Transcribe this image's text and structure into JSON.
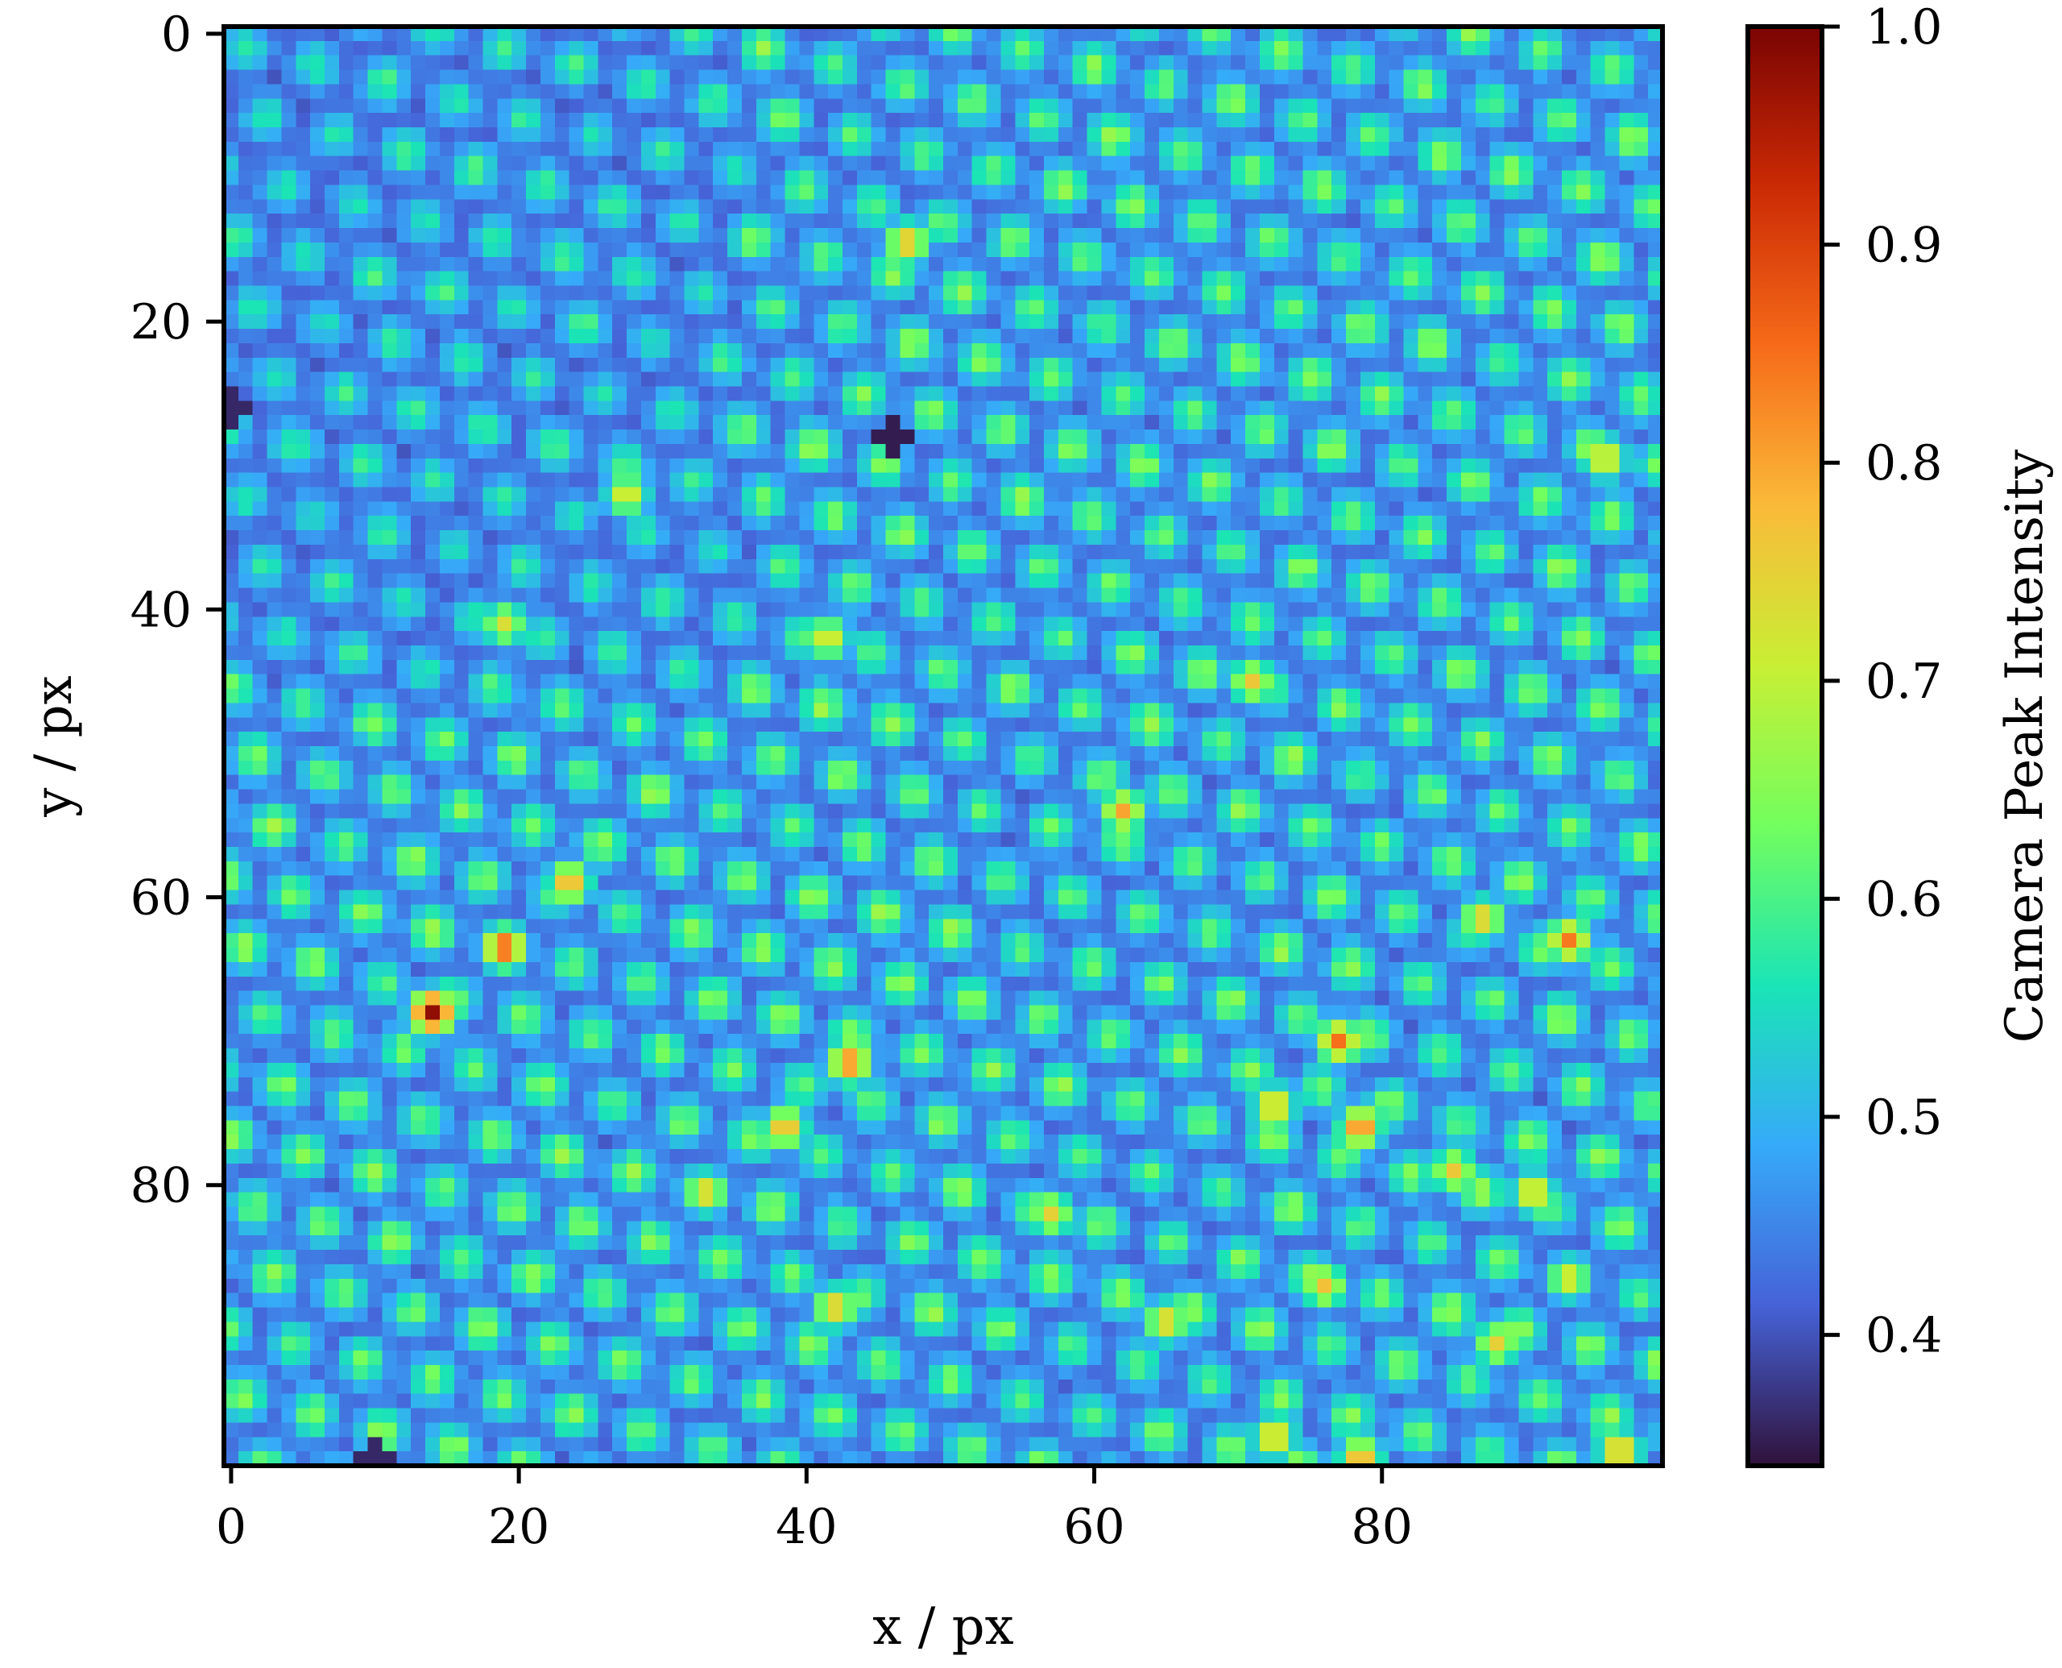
{
  "chart_data": {
    "type": "heatmap",
    "title": "",
    "xlabel": "x / px",
    "ylabel": "y / px",
    "xlim": [
      -0.5,
      99.5
    ],
    "ylim": [
      99.5,
      -0.5
    ],
    "x_ticks": [
      0,
      20,
      40,
      60,
      80
    ],
    "y_ticks": [
      0,
      20,
      40,
      60,
      80
    ],
    "grid": false,
    "colormap": "turbo",
    "colorbar": {
      "label": "Camera Peak Intensity",
      "vmin": 0.34,
      "vmax": 1.0,
      "ticks": [
        0.4,
        0.5,
        0.6,
        0.7,
        0.8,
        0.9,
        1.0
      ],
      "tick_labels": [
        "0.4",
        "0.5",
        "0.6",
        "0.7",
        "0.8",
        "0.9",
        "1.0"
      ],
      "colors": [
        "#30123b",
        "#4662d7",
        "#36aaf9",
        "#1ae4b6",
        "#72fe5e",
        "#c8ef34",
        "#faba39",
        "#f66b19",
        "#cb2a04",
        "#7a0403"
      ]
    },
    "grid_shape": [
      100,
      100
    ],
    "lattice": {
      "spacing": 5.0,
      "angle_deg": 14,
      "spot_sigma": 1.25,
      "background": 0.4,
      "peak": 0.64,
      "left_region_peak": 0.58
    },
    "bright_spots": [
      {
        "x": 14,
        "y": 68,
        "value": 0.98
      },
      {
        "x": 19,
        "y": 63.5,
        "value": 0.88
      },
      {
        "x": 23.5,
        "y": 59,
        "value": 0.8
      },
      {
        "x": 47,
        "y": 14.5,
        "value": 0.78
      },
      {
        "x": 43,
        "y": 71.5,
        "value": 0.84
      },
      {
        "x": 38.5,
        "y": 76,
        "value": 0.79
      },
      {
        "x": 33,
        "y": 80.5,
        "value": 0.76
      },
      {
        "x": 77,
        "y": 70,
        "value": 0.85
      },
      {
        "x": 78.5,
        "y": 76,
        "value": 0.84
      },
      {
        "x": 72.5,
        "y": 74.5,
        "value": 0.78
      },
      {
        "x": 93,
        "y": 63,
        "value": 0.84
      },
      {
        "x": 62,
        "y": 54,
        "value": 0.8
      },
      {
        "x": 71,
        "y": 45,
        "value": 0.76
      },
      {
        "x": 87,
        "y": 61.5,
        "value": 0.77
      },
      {
        "x": 42,
        "y": 88.5,
        "value": 0.77
      },
      {
        "x": 65,
        "y": 89.5,
        "value": 0.76
      },
      {
        "x": 76,
        "y": 87,
        "value": 0.77
      },
      {
        "x": 72.5,
        "y": 97.5,
        "value": 0.78
      },
      {
        "x": 78.5,
        "y": 99,
        "value": 0.8
      },
      {
        "x": 96.5,
        "y": 98.5,
        "value": 0.8
      },
      {
        "x": 95.5,
        "y": 29.5,
        "value": 0.76
      },
      {
        "x": 27.5,
        "y": 32,
        "value": 0.74
      },
      {
        "x": 41.5,
        "y": 42,
        "value": 0.74
      },
      {
        "x": 19,
        "y": 41,
        "value": 0.73
      },
      {
        "x": 85,
        "y": 79,
        "value": 0.76
      },
      {
        "x": 90.5,
        "y": 80.5,
        "value": 0.77
      },
      {
        "x": 57,
        "y": 82,
        "value": 0.75
      },
      {
        "x": 88,
        "y": 91,
        "value": 0.75
      },
      {
        "x": 93,
        "y": 86.5,
        "value": 0.74
      }
    ],
    "dark_spots": [
      {
        "x": 46,
        "y": 28,
        "value": 0.35
      },
      {
        "x": 0,
        "y": 26,
        "value": 0.36
      },
      {
        "x": 10,
        "y": 99,
        "value": 0.36
      }
    ]
  }
}
